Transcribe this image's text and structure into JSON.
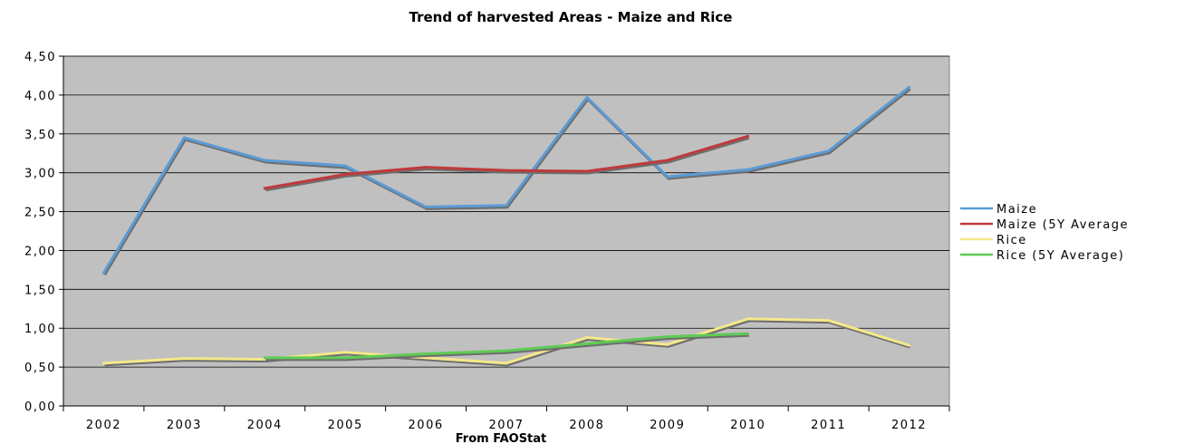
{
  "chart_data": {
    "type": "line",
    "title": "Trend of harvested Areas - Maize and Rice",
    "xlabel": "From FAOStat",
    "ylabel": "",
    "categories": [
      "2002",
      "2003",
      "2004",
      "2005",
      "2006",
      "2007",
      "2008",
      "2009",
      "2010",
      "2011",
      "2012"
    ],
    "ylim": [
      0,
      4.5
    ],
    "yticks": [
      "0,00",
      "0,50",
      "1,00",
      "1,50",
      "2,00",
      "2,50",
      "3,00",
      "3,50",
      "4,00",
      "4,50"
    ],
    "grid": true,
    "legend_position": "right",
    "plot_background": "#c0c0c0",
    "series": [
      {
        "name": "Maize",
        "color": "#5b9bd5",
        "values": [
          1.71,
          3.45,
          3.16,
          3.09,
          2.56,
          2.58,
          3.97,
          2.95,
          3.04,
          3.28,
          4.1
        ]
      },
      {
        "name": "Maize (5Y Average",
        "color": "#c0393b",
        "values": [
          null,
          null,
          2.8,
          2.98,
          3.07,
          3.03,
          3.02,
          3.16,
          3.47,
          null,
          null
        ]
      },
      {
        "name": "Rice",
        "color": "#f5e88a",
        "values": [
          0.55,
          0.61,
          0.6,
          0.69,
          0.62,
          0.55,
          0.88,
          0.79,
          1.12,
          1.1,
          0.78
        ]
      },
      {
        "name": "Rice (5Y Average)",
        "color": "#5fcb55",
        "values": [
          null,
          null,
          0.62,
          0.62,
          0.67,
          0.71,
          0.8,
          0.89,
          0.93,
          null,
          null
        ]
      }
    ]
  }
}
